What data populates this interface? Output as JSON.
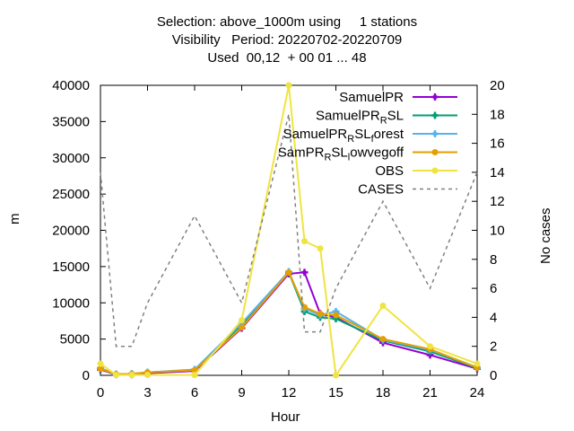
{
  "chart_data": {
    "type": "line",
    "title": [
      "Selection: above_1000m using     1 stations",
      "Visibility   Period: 20220702-20220709",
      "Used  00,12  + 00 01 ... 48"
    ],
    "xlabel": "Hour",
    "ylabel": "m",
    "y2label": "No cases",
    "xlim": [
      0,
      24
    ],
    "ylim": [
      0,
      40000
    ],
    "y2lim": [
      0,
      20
    ],
    "xticks": [
      0,
      3,
      6,
      9,
      12,
      15,
      18,
      21,
      24
    ],
    "yticks": [
      0,
      5000,
      10000,
      15000,
      20000,
      25000,
      30000,
      35000,
      40000
    ],
    "y2ticks": [
      0,
      2,
      4,
      6,
      8,
      10,
      12,
      14,
      16,
      18,
      20
    ],
    "legend_position": "top-right",
    "grid": false,
    "series": [
      {
        "name": "SamuelPR",
        "legend_text": "SamuelPR",
        "color": "#9400d3",
        "marker": "plus",
        "dash": "",
        "x": [
          0,
          1,
          2,
          3,
          6,
          9,
          12,
          13,
          14,
          15,
          18,
          21,
          24
        ],
        "y": [
          800,
          100,
          100,
          300,
          600,
          6500,
          14000,
          14200,
          8500,
          8000,
          4500,
          2800,
          900
        ]
      },
      {
        "name": "SamuelPR_R_SL",
        "legend_text": "SamuelPR",
        "legend_sub": "R",
        "legend_after": "SL",
        "color": "#009e73",
        "marker": "plus",
        "dash": "",
        "x": [
          0,
          1,
          2,
          3,
          6,
          9,
          12,
          13,
          14,
          15,
          18,
          21,
          24
        ],
        "y": [
          900,
          150,
          200,
          400,
          700,
          7000,
          14200,
          8800,
          8000,
          7800,
          4800,
          3300,
          1000
        ]
      },
      {
        "name": "SamuelPR_R_SL_forest",
        "legend_text": "SamuelPR",
        "legend_sub": "R",
        "legend_after": "SL",
        "legend_sub2": "f",
        "legend_after2": "orest",
        "color": "#56b4e9",
        "marker": "plus",
        "dash": "",
        "x": [
          0,
          1,
          2,
          3,
          6,
          9,
          12,
          13,
          14,
          15,
          18,
          21,
          24
        ],
        "y": [
          1000,
          150,
          200,
          400,
          800,
          7200,
          14300,
          9200,
          8300,
          8800,
          4900,
          3500,
          1100
        ]
      },
      {
        "name": "SamPR_R_SL_lowvegoff",
        "legend_text": "SamPR",
        "legend_sub": "R",
        "legend_after": "SL",
        "legend_sub2": "l",
        "legend_after2": "owvegoff",
        "color": "#e69f00",
        "marker": "circle",
        "dash": "",
        "x": [
          0,
          1,
          2,
          3,
          6,
          9,
          12,
          13,
          14,
          15,
          18,
          21,
          24
        ],
        "y": [
          900,
          150,
          200,
          400,
          700,
          6600,
          14200,
          9400,
          8500,
          8300,
          5000,
          3600,
          1050
        ]
      },
      {
        "name": "OBS",
        "legend_text": "OBS",
        "color": "#f0e442",
        "marker": "circle",
        "dash": "",
        "x": [
          0,
          1,
          2,
          3,
          6,
          9,
          12,
          13,
          14,
          15,
          18,
          21,
          24
        ],
        "y": [
          1600,
          50,
          50,
          50,
          50,
          7600,
          40000,
          18500,
          17500,
          0,
          9600,
          4000,
          1600
        ]
      },
      {
        "name": "CASES",
        "legend_text": "CASES",
        "color": "#808080",
        "marker": "none",
        "dash": "4,4",
        "axis": "y2",
        "x": [
          0,
          1,
          1.5,
          2,
          3,
          6,
          9,
          12,
          13,
          14,
          15,
          18,
          21,
          24
        ],
        "y": [
          14,
          2,
          2,
          2,
          5,
          11,
          5,
          18,
          3,
          3,
          6,
          12,
          6,
          14
        ]
      }
    ]
  }
}
